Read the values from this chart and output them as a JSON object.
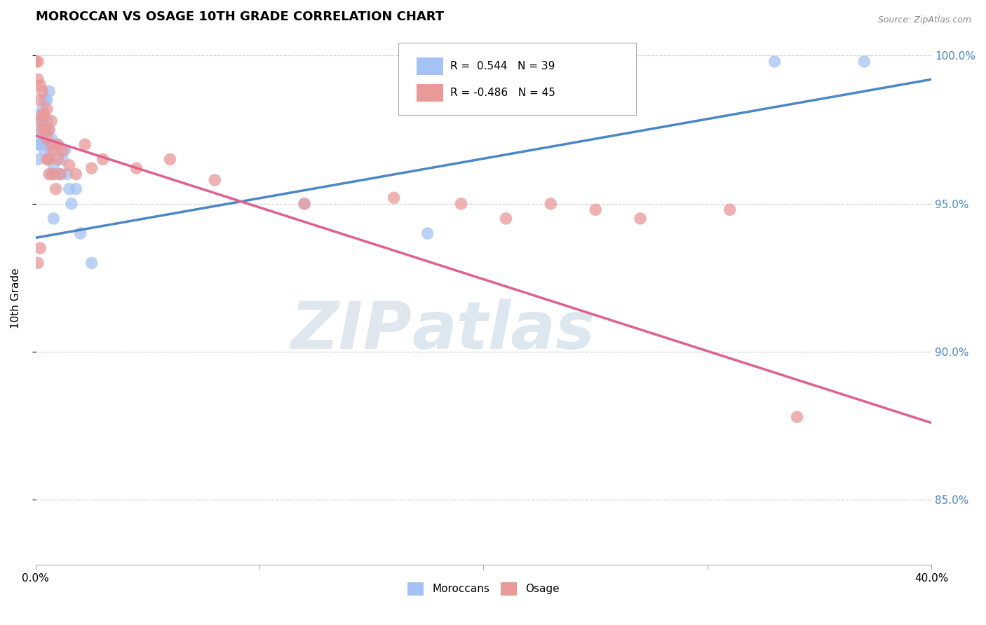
{
  "title": "MOROCCAN VS OSAGE 10TH GRADE CORRELATION CHART",
  "source": "Source: ZipAtlas.com",
  "ylabel": "10th Grade",
  "xlim": [
    0.0,
    0.4
  ],
  "ylim": [
    0.828,
    1.008
  ],
  "ytick_labels": [
    "85.0%",
    "90.0%",
    "95.0%",
    "100.0%"
  ],
  "yticks": [
    0.85,
    0.9,
    0.95,
    1.0
  ],
  "moroccans_R": 0.544,
  "moroccans_N": 39,
  "osage_R": -0.486,
  "osage_N": 45,
  "blue_color": "#a4c2f4",
  "pink_color": "#ea9999",
  "blue_line_color": "#4a86c8",
  "pink_line_color": "#e06090",
  "watermark_zip": "ZIP",
  "watermark_atlas": "atlas",
  "blue_line_x0": 0.0,
  "blue_line_y0": 0.9385,
  "blue_line_x1": 0.4,
  "blue_line_y1": 0.992,
  "pink_line_x0": 0.0,
  "pink_line_y0": 0.973,
  "pink_line_x1": 0.4,
  "pink_line_y1": 0.876,
  "moroccans_x": [
    0.001,
    0.001,
    0.002,
    0.002,
    0.003,
    0.003,
    0.004,
    0.004,
    0.005,
    0.005,
    0.006,
    0.006,
    0.007,
    0.007,
    0.008,
    0.009,
    0.01,
    0.011,
    0.012,
    0.013,
    0.014,
    0.015,
    0.016,
    0.018,
    0.002,
    0.003,
    0.004,
    0.005,
    0.006,
    0.007,
    0.008,
    0.02,
    0.025,
    0.12,
    0.175,
    0.33,
    0.165,
    0.21,
    0.37
  ],
  "moroccans_y": [
    0.97,
    0.965,
    0.975,
    0.97,
    0.978,
    0.972,
    0.975,
    0.968,
    0.978,
    0.97,
    0.975,
    0.965,
    0.968,
    0.96,
    0.963,
    0.97,
    0.96,
    0.96,
    0.965,
    0.968,
    0.96,
    0.955,
    0.95,
    0.955,
    0.98,
    0.982,
    0.985,
    0.985,
    0.988,
    0.972,
    0.945,
    0.94,
    0.93,
    0.95,
    0.94,
    0.998,
    0.993,
    0.996,
    0.998
  ],
  "osage_x": [
    0.001,
    0.001,
    0.002,
    0.002,
    0.003,
    0.003,
    0.004,
    0.005,
    0.005,
    0.006,
    0.006,
    0.007,
    0.008,
    0.009,
    0.01,
    0.011,
    0.012,
    0.003,
    0.004,
    0.005,
    0.002,
    0.006,
    0.007,
    0.008,
    0.01,
    0.015,
    0.018,
    0.022,
    0.03,
    0.045,
    0.06,
    0.08,
    0.12,
    0.16,
    0.19,
    0.21,
    0.23,
    0.25,
    0.27,
    0.31,
    0.34,
    0.001,
    0.002,
    0.0,
    0.025
  ],
  "osage_y": [
    0.998,
    0.992,
    0.985,
    0.978,
    0.98,
    0.975,
    0.975,
    0.972,
    0.965,
    0.975,
    0.965,
    0.97,
    0.96,
    0.955,
    0.97,
    0.96,
    0.968,
    0.988,
    0.98,
    0.982,
    0.99,
    0.96,
    0.978,
    0.968,
    0.965,
    0.963,
    0.96,
    0.97,
    0.965,
    0.962,
    0.965,
    0.958,
    0.95,
    0.952,
    0.95,
    0.945,
    0.95,
    0.948,
    0.945,
    0.948,
    0.878,
    0.93,
    0.935,
    0.998,
    0.962
  ]
}
